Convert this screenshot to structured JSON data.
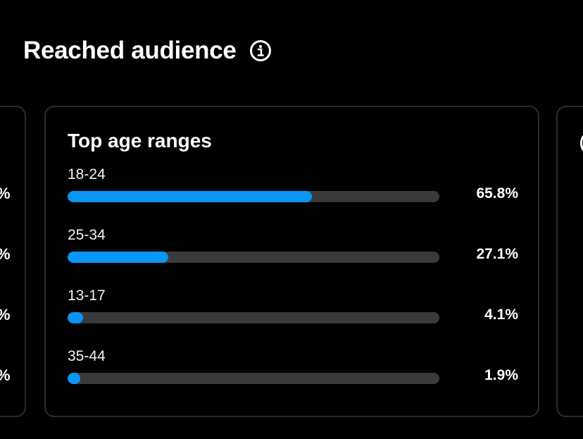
{
  "header": {
    "title": "Reached audience",
    "info_icon": "info-circle-icon"
  },
  "card": {
    "title": "Top age ranges",
    "accent_color": "#0a95f5",
    "track_color": "#3a3a3c",
    "rows": [
      {
        "label": "18-24",
        "percent": "65.8%",
        "value": 65.8
      },
      {
        "label": "25-34",
        "percent": "27.1%",
        "value": 27.1
      },
      {
        "label": "13-17",
        "percent": "4.1%",
        "value": 4.1
      },
      {
        "label": "35-44",
        "percent": "1.9%",
        "value": 1.9
      }
    ]
  },
  "left_card_partial": {
    "glyphs": [
      "%",
      "%",
      "%",
      "%"
    ]
  }
}
